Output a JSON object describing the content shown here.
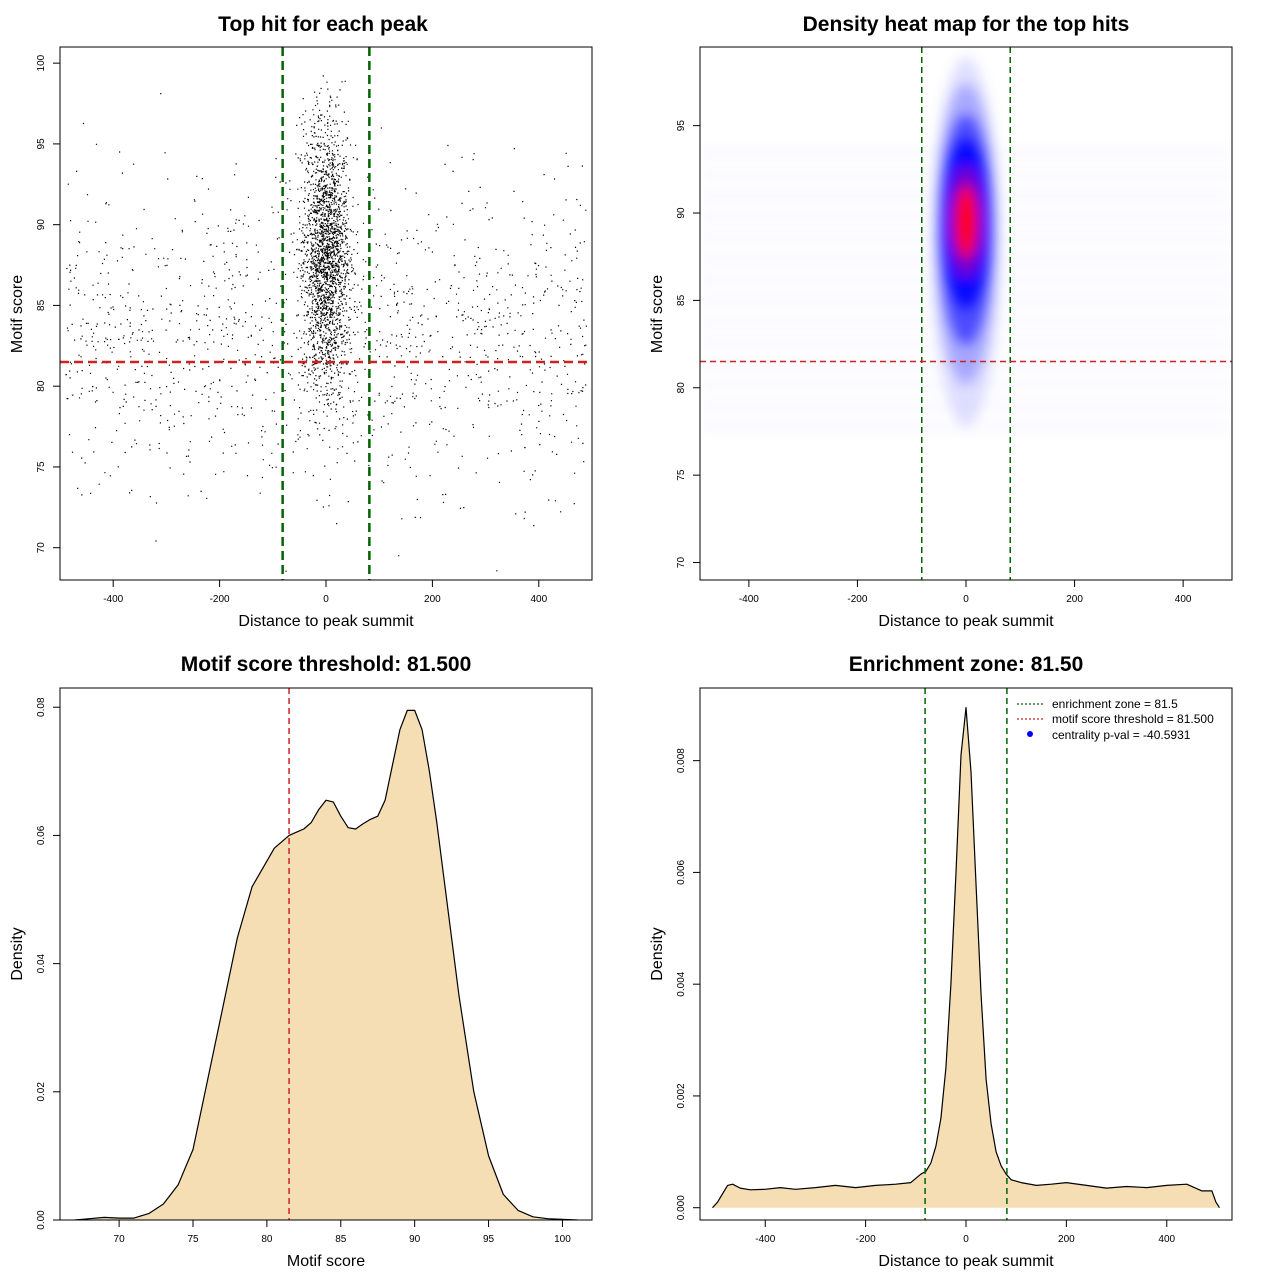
{
  "colors": {
    "points": "#000000",
    "threshold_line": "#cc2222",
    "zone_line": "#006400",
    "density_fill": "#f5deb3",
    "heat_low": "#ffffff",
    "heat_mid": "#0000ff",
    "heat_high": "#ff0000"
  },
  "chart_data": [
    {
      "id": "scatter",
      "type": "scatter",
      "title": "Top hit for each peak",
      "xlabel": "Distance to peak summit",
      "ylabel": "Motif score",
      "xlim": [
        -500,
        500
      ],
      "ylim": [
        68,
        101
      ],
      "xticks": [
        -400,
        -200,
        0,
        200,
        400
      ],
      "yticks": [
        70,
        75,
        80,
        85,
        90,
        95,
        100
      ],
      "vlines": [
        -81.5,
        81.5
      ],
      "hline": 81.5,
      "distribution": {
        "central_fraction": 0.62,
        "central_x_sd": 22,
        "central_y_mean": 88,
        "central_y_sd": 4,
        "background_y_mean": 83,
        "background_y_sd": 4.8,
        "n_points": 9000
      }
    },
    {
      "id": "heatmap",
      "type": "heatmap",
      "title": "Density heat map for the top hits",
      "xlabel": "Distance to peak summit",
      "ylabel": "Motif score",
      "xlim": [
        -490,
        490
      ],
      "ylim": [
        69,
        99.5
      ],
      "xticks": [
        -400,
        -200,
        0,
        200,
        400
      ],
      "yticks": [
        70,
        75,
        80,
        85,
        90,
        95
      ],
      "vlines": [
        -81.5,
        81.5
      ],
      "hline": 81.5,
      "peak": {
        "x": 0,
        "y": 89.5
      }
    },
    {
      "id": "score-density",
      "type": "area",
      "title": "Motif score threshold: 81.500",
      "xlabel": "Motif score",
      "ylabel": "Density",
      "xlim": [
        66,
        102
      ],
      "ylim": [
        0,
        0.083
      ],
      "xticks": [
        70,
        75,
        80,
        85,
        90,
        95,
        100
      ],
      "yticks": [
        0.0,
        0.02,
        0.04,
        0.06,
        0.08
      ],
      "ytick_labels": [
        "0.00",
        "0.02",
        "0.04",
        "0.06",
        "0.08"
      ],
      "vline": 81.5,
      "x": [
        67,
        68,
        69,
        70,
        71,
        72,
        73,
        74,
        75,
        76,
        77,
        78,
        79,
        80,
        80.5,
        81,
        81.5,
        82,
        82.5,
        83,
        83.5,
        84,
        84.5,
        85,
        85.5,
        86,
        86.5,
        87,
        87.5,
        88,
        88.5,
        89,
        89.5,
        90,
        90.5,
        91,
        91.5,
        92,
        93,
        94,
        95,
        96,
        97,
        98,
        99,
        100,
        101
      ],
      "y": [
        0.0,
        0.0002,
        0.0004,
        0.0003,
        0.0003,
        0.001,
        0.0025,
        0.0055,
        0.011,
        0.022,
        0.033,
        0.044,
        0.052,
        0.056,
        0.058,
        0.059,
        0.06,
        0.0605,
        0.061,
        0.062,
        0.064,
        0.0655,
        0.0652,
        0.063,
        0.0612,
        0.061,
        0.0618,
        0.0625,
        0.063,
        0.0655,
        0.071,
        0.0765,
        0.0795,
        0.0795,
        0.0765,
        0.07,
        0.062,
        0.053,
        0.035,
        0.02,
        0.01,
        0.004,
        0.0015,
        0.0005,
        0.0002,
        0.0001,
        0.0
      ]
    },
    {
      "id": "distance-density",
      "type": "area",
      "title": "Enrichment zone: 81.50",
      "xlabel": "Distance to peak summit",
      "ylabel": "Density",
      "xlim": [
        -530,
        530
      ],
      "ylim": [
        -0.00022,
        0.0093
      ],
      "xticks": [
        -400,
        -200,
        0,
        200,
        400
      ],
      "yticks": [
        0.0,
        0.002,
        0.004,
        0.006,
        0.008
      ],
      "ytick_labels": [
        "0.000",
        "0.002",
        "0.004",
        "0.006",
        "0.008"
      ],
      "vlines": [
        -81.5,
        81.5
      ],
      "x": [
        -505,
        -495,
        -485,
        -475,
        -465,
        -450,
        -430,
        -400,
        -370,
        -340,
        -300,
        -260,
        -220,
        -180,
        -140,
        -110,
        -90,
        -80,
        -70,
        -60,
        -50,
        -40,
        -30,
        -20,
        -10,
        0,
        10,
        20,
        30,
        40,
        50,
        60,
        70,
        80,
        90,
        110,
        140,
        170,
        200,
        240,
        280,
        320,
        360,
        400,
        440,
        470,
        490,
        498,
        505
      ],
      "y": [
        0.0,
        0.0001,
        0.00025,
        0.0004,
        0.00042,
        0.00035,
        0.00032,
        0.00033,
        0.00036,
        0.00033,
        0.00036,
        0.0004,
        0.00036,
        0.0004,
        0.00042,
        0.00045,
        0.0006,
        0.00065,
        0.0008,
        0.0011,
        0.0016,
        0.0025,
        0.004,
        0.006,
        0.0081,
        0.00895,
        0.0078,
        0.0058,
        0.0038,
        0.0023,
        0.0015,
        0.001,
        0.00075,
        0.0006,
        0.0005,
        0.00045,
        0.0004,
        0.00042,
        0.00045,
        0.0004,
        0.00035,
        0.00038,
        0.00036,
        0.0004,
        0.00042,
        0.0003,
        0.0003,
        0.0001,
        0.0
      ],
      "legend": [
        {
          "label": "enrichment zone = 81.5",
          "color": "#006400",
          "style": "dotted-line"
        },
        {
          "label": "motif score threshold = 81.500",
          "color": "#cc2222",
          "style": "dotted-line"
        },
        {
          "label": "centrality p-val = -40.5931",
          "color": "#0000ff",
          "style": "point"
        }
      ],
      "legend_position": "top-right"
    }
  ]
}
